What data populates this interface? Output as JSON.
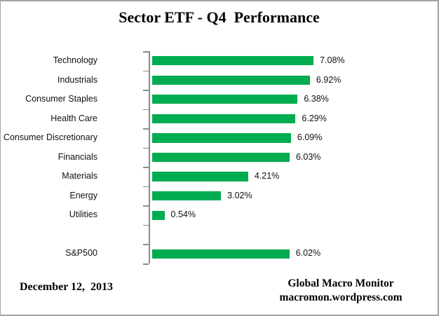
{
  "title": "Sector ETF - Q4  Performance",
  "chart_data": {
    "type": "bar",
    "orientation": "horizontal",
    "title": "Sector ETF - Q4  Performance",
    "categories": [
      "Technology",
      "Industrials",
      "Consumer Staples",
      "Health Care",
      "Consumer Discretionary",
      "Financials",
      "Materials",
      "Energy",
      "Utilities",
      "",
      "S&P500"
    ],
    "values": [
      7.08,
      6.92,
      6.38,
      6.29,
      6.09,
      6.03,
      4.21,
      3.02,
      0.54,
      null,
      6.02
    ],
    "value_labels": [
      "7.08%",
      "6.92%",
      "6.38%",
      "6.29%",
      "6.09%",
      "6.03%",
      "4.21%",
      "3.02%",
      "0.54%",
      "",
      "6.02%"
    ],
    "xlabel": "",
    "ylabel": "",
    "xlim": [
      0,
      8
    ],
    "grid": false,
    "legend": false,
    "data_labels": true,
    "bar_color": "#00AC50",
    "axis_color": "#8c8c8c"
  },
  "footer": {
    "date": "December 12,  2013",
    "source_line1": "Global Macro Monitor",
    "source_line2": "macromon.wordpress.com"
  }
}
